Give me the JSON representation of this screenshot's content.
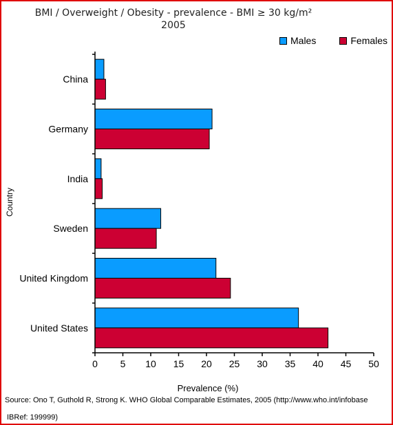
{
  "chart_data": {
    "type": "bar",
    "orientation": "horizontal",
    "title": "BMI / Overweight / Obesity - prevalence - BMI ≥ 30 kg/m²",
    "subtitle": "2005",
    "xlabel": "Prevalence (%)",
    "ylabel": "Country",
    "xlim": [
      0,
      50
    ],
    "xticks": [
      0,
      5,
      10,
      15,
      20,
      25,
      30,
      35,
      40,
      45,
      50
    ],
    "categories": [
      "China",
      "Germany",
      "India",
      "Sweden",
      "United Kingdom",
      "United States"
    ],
    "series": [
      {
        "name": "Males",
        "color": "#0a9cff",
        "values": [
          1.6,
          21.0,
          1.1,
          11.8,
          21.7,
          36.5
        ]
      },
      {
        "name": "Females",
        "color": "#cc0033",
        "values": [
          1.9,
          20.5,
          1.3,
          11.0,
          24.3,
          41.8
        ]
      }
    ],
    "legend_position": "top-right",
    "grid": false
  },
  "source": "Source: Ono T, Guthold R, Strong K. WHO Global Comparable Estimates, 2005  (http://www.who.int/infobase",
  "ibref": "IBRef: 199999)"
}
